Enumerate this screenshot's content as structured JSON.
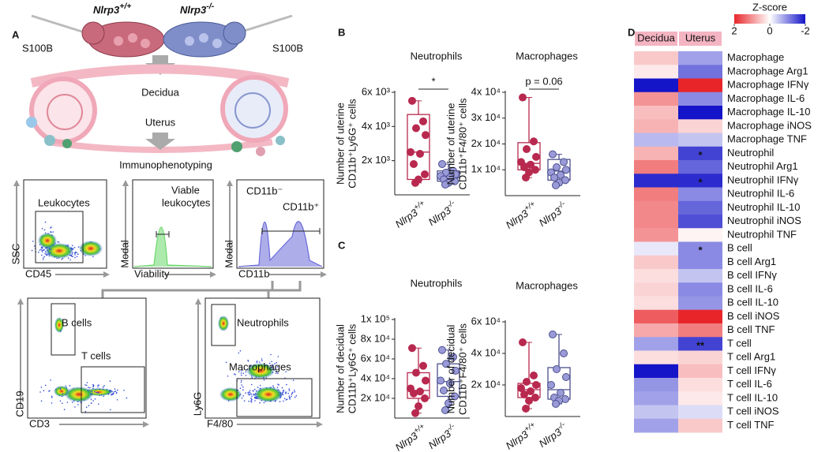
{
  "panel_labels": [
    "A",
    "B",
    "C",
    "D"
  ],
  "panel_a": {
    "strains": [
      {
        "name": "Nlrp3",
        "genotype": "+/+"
      },
      {
        "name": "Nlrp3",
        "genotype": "-/-"
      }
    ],
    "treatment": [
      "S100B",
      "S100B"
    ],
    "tissues": [
      "Decidua",
      "Uterus"
    ],
    "method": "Immunophenotyping",
    "flow_plots": [
      {
        "y_axis": "SSC",
        "x_axis": "CD45",
        "gates": [
          [
            "Leukocytes"
          ]
        ]
      },
      {
        "y_axis": "Modal",
        "x_axis": "Viability",
        "gates": [
          [
            "Viable",
            "leukocytes"
          ]
        ]
      },
      {
        "y_axis": "Modal",
        "x_axis": "CD11b",
        "gates": [
          [
            "CD11b⁻"
          ],
          [
            "CD11b⁺"
          ]
        ]
      },
      {
        "y_axis": "CD19",
        "x_axis": "CD3",
        "gates": [
          [
            "B cells"
          ],
          [
            "T cells"
          ]
        ]
      },
      {
        "y_axis": "Ly6G",
        "x_axis": "F4/80",
        "gates": [
          [
            "Neutrophils"
          ],
          [
            "Macrophages"
          ]
        ]
      }
    ]
  },
  "chart_data": [
    {
      "type": "box",
      "title": "Neutrophils",
      "y_label": [
        "Number of uterine",
        "CD11b⁺Ly6G⁺ cells"
      ],
      "ylim": [
        0,
        6000
      ],
      "yticks": [
        {
          "value": 2000,
          "label": "2x 10³"
        },
        {
          "value": 4000,
          "label": "4x 10³"
        },
        {
          "value": 6000,
          "label": "6x 10³"
        }
      ],
      "significance": "*",
      "groups": [
        {
          "name": "Nlrp3",
          "genotype": "+/+",
          "color": "#b8294f",
          "fill": "#b8294f",
          "box": {
            "min": 700,
            "q1": 900,
            "median": 2500,
            "q3": 4700,
            "max": 5500
          },
          "values": [
            5500,
            4300,
            3900,
            3500,
            2500,
            2400,
            1800,
            1200,
            900,
            700
          ]
        },
        {
          "name": "Nlrp3",
          "genotype": "-/-",
          "color": "#4a4f8c",
          "fill": "#9a9ad8",
          "box": {
            "min": 600,
            "q1": 800,
            "median": 1000,
            "q3": 1400,
            "max": 1800
          },
          "values": [
            1800,
            1400,
            1300,
            1200,
            1100,
            1000,
            900,
            800,
            700,
            600
          ]
        }
      ]
    },
    {
      "type": "box",
      "title": "Macrophages",
      "y_label": [
        "Number of uterine",
        "CD11b⁺F4/80⁺ cells"
      ],
      "ylim": [
        0,
        40000
      ],
      "yticks": [
        {
          "value": 10000,
          "label": "1x 10⁴"
        },
        {
          "value": 20000,
          "label": "2x 10⁴"
        },
        {
          "value": 30000,
          "label": "3x 10⁴"
        },
        {
          "value": 40000,
          "label": "4x 10⁴"
        }
      ],
      "significance": "p = 0.06",
      "groups": [
        {
          "name": "Nlrp3",
          "genotype": "+/+",
          "color": "#b8294f",
          "fill": "#b8294f",
          "box": {
            "min": 7000,
            "q1": 10000,
            "median": 12500,
            "q3": 20500,
            "max": 38000
          },
          "values": [
            38000,
            21000,
            18000,
            15000,
            13000,
            12000,
            11000,
            10000,
            9000,
            7000
          ]
        },
        {
          "name": "Nlrp3",
          "genotype": "-/-",
          "color": "#4a4f8c",
          "fill": "#9a9ad8",
          "box": {
            "min": 4000,
            "q1": 6000,
            "median": 9500,
            "q3": 14000,
            "max": 16000
          },
          "values": [
            16000,
            13000,
            11000,
            10000,
            9000,
            8000,
            7000,
            6000,
            5000,
            4000
          ]
        }
      ]
    },
    {
      "type": "box",
      "title": "Neutrophils",
      "y_label": [
        "Number of decidual",
        "CD11b⁺Ly6G⁺ cells"
      ],
      "ylim": [
        0,
        100000
      ],
      "yticks": [
        {
          "value": 20000,
          "label": "2x 10⁴"
        },
        {
          "value": 40000,
          "label": "4x 10⁴"
        },
        {
          "value": 60000,
          "label": "6x 10⁴"
        },
        {
          "value": 80000,
          "label": "8x 10⁴"
        },
        {
          "value": 100000,
          "label": "1x 10⁵"
        }
      ],
      "groups": [
        {
          "name": "Nlrp3",
          "genotype": "+/+",
          "color": "#b8294f",
          "fill": "#b8294f",
          "box": {
            "min": 5000,
            "q1": 20000,
            "median": 28000,
            "q3": 46000,
            "max": 71000
          },
          "values": [
            71000,
            53000,
            46000,
            38000,
            30000,
            27000,
            25000,
            20000,
            12000,
            5000
          ]
        },
        {
          "name": "Nlrp3",
          "genotype": "-/-",
          "color": "#4a4f8c",
          "fill": "#9a9ad8",
          "box": {
            "min": 8000,
            "q1": 22000,
            "median": 37000,
            "q3": 55000,
            "max": 69000
          },
          "values": [
            69000,
            62000,
            55000,
            48000,
            38000,
            35000,
            28000,
            22000,
            15000,
            8000
          ]
        }
      ]
    },
    {
      "type": "box",
      "title": "Macrophages",
      "y_label": [
        "Number of decidual",
        "CD11b⁺F4/80⁺ cells"
      ],
      "ylim": [
        0,
        60000
      ],
      "yticks": [
        {
          "value": 20000,
          "label": "2x 10⁴"
        },
        {
          "value": 40000,
          "label": "4x 10⁴"
        },
        {
          "value": 60000,
          "label": "6x 10⁴"
        }
      ],
      "groups": [
        {
          "name": "Nlrp3",
          "genotype": "+/+",
          "color": "#b8294f",
          "fill": "#b8294f",
          "box": {
            "min": 5000,
            "q1": 12000,
            "median": 17000,
            "q3": 21000,
            "max": 47000
          },
          "values": [
            47000,
            26000,
            22000,
            20000,
            18000,
            16000,
            14000,
            12000,
            10000,
            5000
          ]
        },
        {
          "name": "Nlrp3",
          "genotype": "-/-",
          "color": "#4a4f8c",
          "fill": "#9a9ad8",
          "box": {
            "min": 8000,
            "q1": 11000,
            "median": 17000,
            "q3": 31000,
            "max": 52000
          },
          "values": [
            52000,
            40000,
            30000,
            25000,
            20000,
            15000,
            12000,
            11000,
            10000,
            8000
          ]
        }
      ]
    },
    {
      "type": "heatmap",
      "columns": [
        "Decidua",
        "Uterus"
      ],
      "rows": [
        "Macrophage",
        "Macrophage Arg1",
        "Macrophage IFNγ",
        "Macrophage IL-6",
        "Macrophage IL-10",
        "Macrophage iNOS",
        "Macrophage TNF",
        "Neutrophil",
        "Neutrophil Arg1",
        "Neutrophil IFNγ",
        "Neutrophil IL-6",
        "Neutrophil IL-10",
        "Neutrophil iNOS",
        "Neutrophil TNF",
        "B cell",
        "B cell Arg1",
        "B cell IFNγ",
        "B cell IL-6",
        "B cell IL-10",
        "B cell iNOS",
        "B cell TNF",
        "T cell",
        "T cell Arg1",
        "T cell IFNγ",
        "T cell IL-6",
        "T cell IL-10",
        "T cell iNOS",
        "T cell TNF"
      ],
      "row_colors": [
        "#7b2fa0",
        "#7b2fa0",
        "#7b2fa0",
        "#7b2fa0",
        "#7b2fa0",
        "#7b2fa0",
        "#7b2fa0",
        "#e8141c",
        "#e8141c",
        "#e8141c",
        "#e8141c",
        "#e8141c",
        "#e8141c",
        "#e8141c",
        "#3fb0e8",
        "#3fb0e8",
        "#3fb0e8",
        "#3fb0e8",
        "#3fb0e8",
        "#3fb0e8",
        "#3fb0e8",
        "#1a20c8",
        "#1a20c8",
        "#1a20c8",
        "#1a20c8",
        "#1a20c8",
        "#1a20c8",
        "#1a20c8"
      ],
      "values": [
        [
          0.5,
          -0.8
        ],
        [
          0.2,
          -1.2
        ],
        [
          -2.2,
          2.2
        ],
        [
          1.0,
          -1.0
        ],
        [
          0.6,
          -2.2
        ],
        [
          0.7,
          0.4
        ],
        [
          -0.6,
          -0.5
        ],
        [
          0.7,
          -1.6
        ],
        [
          1.2,
          -1.3
        ],
        [
          -1.8,
          -1.8
        ],
        [
          1.2,
          -1.0
        ],
        [
          1.1,
          -1.3
        ],
        [
          1.1,
          -1.5
        ],
        [
          1.0,
          0.1
        ],
        [
          -0.2,
          -1.0
        ],
        [
          0.5,
          -1.0
        ],
        [
          0.3,
          -0.5
        ],
        [
          0.4,
          -1.0
        ],
        [
          0.3,
          -0.9
        ],
        [
          1.5,
          2.0
        ],
        [
          0.8,
          1.2
        ],
        [
          -0.8,
          -1.6
        ],
        [
          0.3,
          0.4
        ],
        [
          -2.2,
          0.6
        ],
        [
          -0.9,
          0.3
        ],
        [
          -0.8,
          0.2
        ],
        [
          -0.5,
          -0.3
        ],
        [
          -0.8,
          0.5
        ]
      ],
      "significance": [
        null,
        null,
        null,
        null,
        null,
        null,
        null,
        "*",
        null,
        "*",
        null,
        null,
        null,
        null,
        "*",
        null,
        null,
        null,
        null,
        null,
        null,
        "**",
        null,
        null,
        null,
        null,
        null,
        null
      ],
      "colorbar": {
        "title": "Z-score",
        "lim": [
          2,
          -2
        ],
        "ticks": [
          2,
          0,
          -2
        ],
        "colors": [
          "#e8262a",
          "#ffffff",
          "#1414c8"
        ]
      }
    }
  ]
}
